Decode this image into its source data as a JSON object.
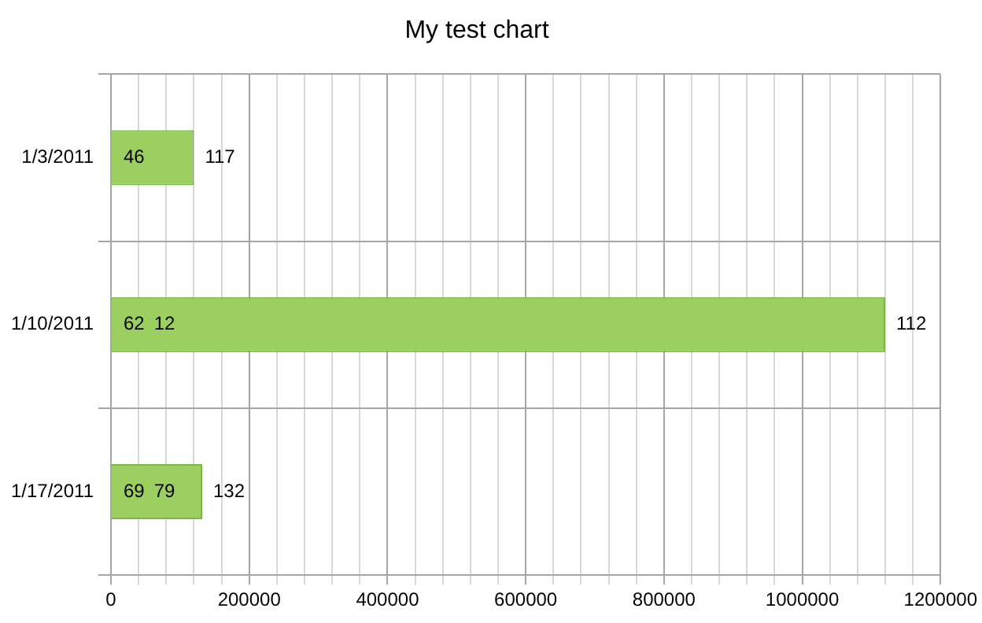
{
  "chart_data": {
    "type": "bar",
    "orientation": "horizontal",
    "title": "My test chart",
    "categories": [
      "1/3/2011",
      "1/10/2011",
      "1/17/2011"
    ],
    "values": [
      120000,
      1120000,
      132000
    ],
    "color": "#9bd060",
    "annotations": [
      {
        "text": "46",
        "x": 0,
        "y": "1/3/2011"
      },
      {
        "text": "62",
        "x": 0,
        "y": "1/10/2011"
      },
      {
        "text": "12",
        "x": 0,
        "y": "1/10/2011"
      },
      {
        "text": "69",
        "x": 0,
        "y": "1/17/2011"
      },
      {
        "text": "79",
        "x": 0,
        "y": "1/17/2011"
      },
      {
        "text": "117",
        "x": 120000,
        "y": "1/3/2011"
      },
      {
        "text": "112",
        "x": 1120000,
        "y": "1/10/2011"
      },
      {
        "text": "132",
        "x": 132000,
        "y": "1/17/2011"
      }
    ],
    "xlim": [
      0,
      1200000
    ],
    "xticks": [
      0,
      {
        "value": 40000,
        "label": null
      },
      {
        "value": 80000,
        "label": null
      },
      {
        "value": 120000,
        "label": null
      },
      {
        "value": 160000,
        "label": null
      },
      200000,
      {
        "value": 240000,
        "label": null
      },
      {
        "value": 280000,
        "label": null
      },
      {
        "value": 320000,
        "label": null
      },
      {
        "value": 360000,
        "label": null
      },
      400000,
      {
        "value": 440000,
        "label": null
      },
      {
        "value": 480000,
        "label": null
      },
      {
        "value": 520000,
        "label": null
      },
      {
        "value": 560000,
        "label": null
      },
      600000,
      {
        "value": 640000,
        "label": null
      },
      {
        "value": 680000,
        "label": null
      },
      {
        "value": 720000,
        "label": null
      },
      {
        "value": 760000,
        "label": null
      },
      800000,
      {
        "value": 840000,
        "label": null
      },
      {
        "value": 880000,
        "label": null
      },
      {
        "value": 920000,
        "label": null
      },
      {
        "value": 960000,
        "label": null
      },
      1000000,
      {
        "value": 1040000,
        "label": null
      },
      {
        "value": 1080000,
        "label": null
      },
      {
        "value": 1120000,
        "label": null
      },
      {
        "value": 1160000,
        "label": null
      },
      1200000
    ],
    "grid": true
  }
}
